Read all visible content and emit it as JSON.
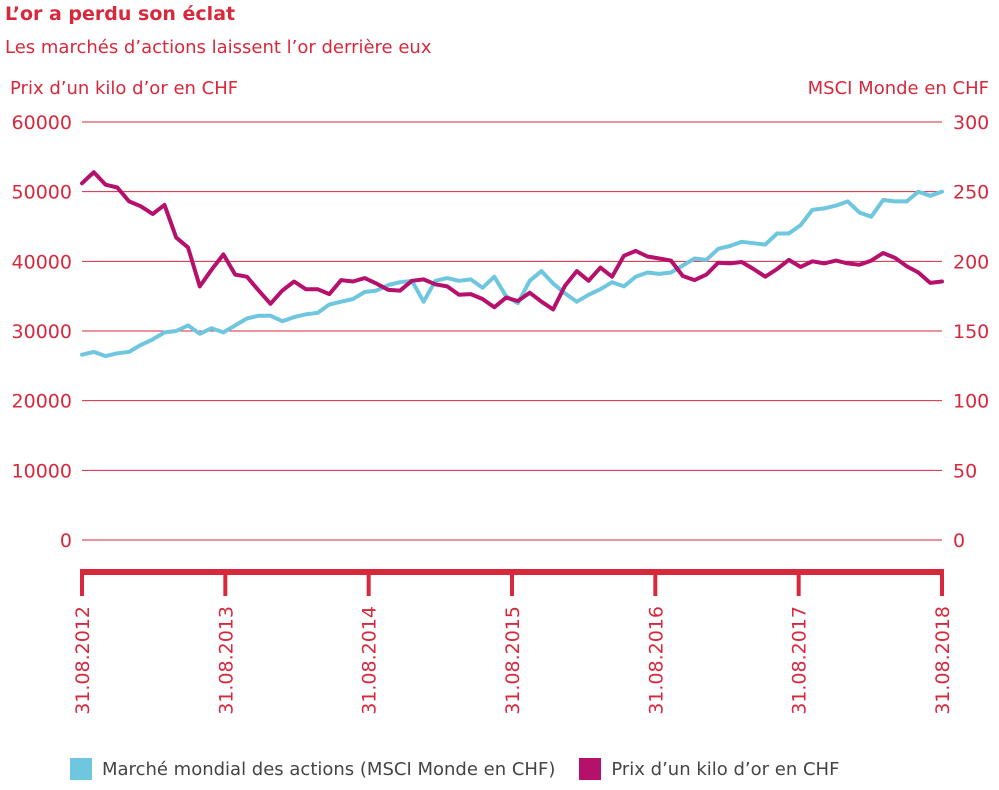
{
  "chart_data": {
    "type": "line",
    "title": "L’or a perdu son éclat",
    "subtitle": "Les marchés d’actions laissent l’or derrière eux",
    "ylabel_left": "Prix d’un kilo d’or en CHF",
    "ylabel_right": "MSCI Monde en CHF",
    "ylim_left": [
      0,
      60000
    ],
    "yticks_left": [
      "0",
      "10000",
      "20000",
      "30000",
      "40000",
      "50000",
      "60000"
    ],
    "ylim_right": [
      0,
      300
    ],
    "yticks_right": [
      "0",
      "50",
      "100",
      "150",
      "200",
      "250",
      "300"
    ],
    "x_ticks": [
      "31.08.2012",
      "31.08.2013",
      "31.08.2014",
      "31.08.2015",
      "31.08.2016",
      "31.08.2017",
      "31.08.2018"
    ],
    "grid": true,
    "legend_placement": "bottom",
    "colors": {
      "accent": "#d8283c",
      "msci": "#6ec6df",
      "gold": "#b5106b"
    },
    "series": [
      {
        "name": "Marché mondial des actions (MSCI Monde en CHF)",
        "axis": "right",
        "values": [
          133,
          135,
          132,
          134,
          135,
          140,
          144,
          149,
          150,
          154,
          148,
          152,
          149,
          154,
          159,
          161,
          161,
          157,
          160,
          162,
          163,
          169,
          171,
          173,
          178,
          179,
          183,
          185,
          186,
          171,
          186,
          188,
          186,
          187,
          181,
          189,
          175,
          170,
          186,
          193,
          184,
          177,
          171,
          176,
          180,
          185,
          182,
          189,
          192,
          191,
          192,
          197,
          202,
          201,
          209,
          211,
          214,
          213,
          212,
          220,
          220,
          226,
          237,
          238,
          240,
          243,
          235,
          232,
          244,
          243,
          243,
          250,
          247,
          250
        ]
      },
      {
        "name": "Prix d’un kilo d’or en CHF",
        "axis": "left",
        "values": [
          51200,
          52800,
          51000,
          50600,
          48600,
          47900,
          46800,
          48100,
          43400,
          42000,
          36400,
          38800,
          41000,
          38100,
          37800,
          35800,
          33900,
          35800,
          37100,
          36000,
          36000,
          35300,
          37300,
          37100,
          37600,
          36800,
          35900,
          35800,
          37200,
          37400,
          36700,
          36400,
          35200,
          35300,
          34600,
          33400,
          34800,
          34300,
          35500,
          34200,
          33100,
          36500,
          38600,
          37200,
          39100,
          37800,
          40800,
          41500,
          40700,
          40400,
          40100,
          37900,
          37300,
          38100,
          39800,
          39700,
          39900,
          38900,
          37800,
          38900,
          40200,
          39200,
          40000,
          39700,
          40100,
          39700,
          39500,
          40100,
          41200,
          40500,
          39300,
          38400,
          36900,
          37100
        ]
      }
    ]
  }
}
